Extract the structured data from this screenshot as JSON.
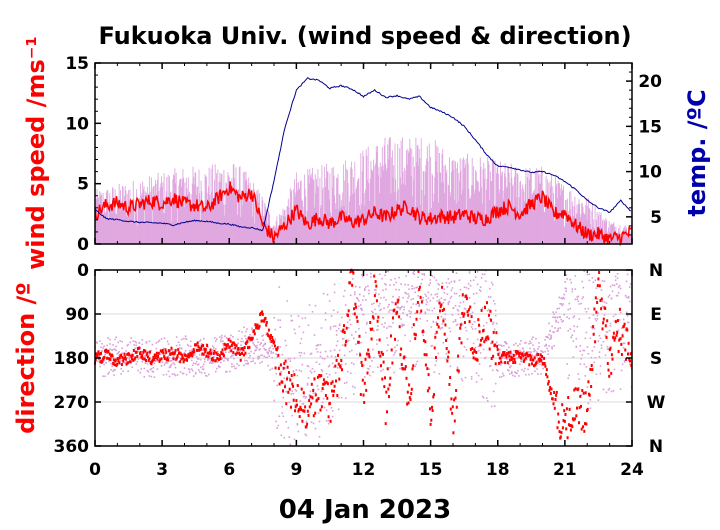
{
  "chart_data": [
    {
      "type": "line",
      "panel": "wind speed & temperature",
      "title": "Fukuoka Univ. (wind speed & direction)",
      "xlabel": "04 Jan 2023",
      "ylabel": "wind speed /ms⁻¹",
      "ylabel_right": "temp. /ºC",
      "xlim": [
        0,
        24
      ],
      "ylim": [
        0,
        15
      ],
      "ylim_right": [
        2,
        22
      ],
      "x_ticks": [
        "0",
        "3",
        "6",
        "9",
        "12",
        "15",
        "18",
        "21",
        "24"
      ],
      "y_ticks": [
        "0",
        "5",
        "10",
        "15"
      ],
      "y_right_ticks": [
        "5",
        "10",
        "15",
        "20"
      ],
      "grid": false,
      "series": [
        {
          "role": "gust (instantaneous wind speed)",
          "color": "#dda0dd",
          "x": [
            0,
            1,
            2,
            3,
            4,
            5,
            6,
            6.5,
            7,
            7.5,
            8,
            8.5,
            9,
            10,
            11,
            12,
            13,
            14,
            15,
            16,
            17,
            18,
            19,
            20,
            21,
            22,
            23,
            24
          ],
          "y": [
            4.5,
            5,
            5.5,
            6,
            6.5,
            6.5,
            7,
            6.5,
            5.5,
            4,
            2,
            3.5,
            6,
            6.5,
            7,
            8,
            9,
            9,
            9,
            7.5,
            7.5,
            7,
            6.5,
            6.5,
            5,
            4,
            2,
            1.5
          ]
        },
        {
          "role": "mean wind speed",
          "color": "#ff0000",
          "x": [
            0,
            0.5,
            1,
            1.5,
            2,
            2.5,
            3,
            3.5,
            4,
            4.5,
            5,
            5.5,
            6,
            6.5,
            7,
            7.5,
            8,
            8.5,
            9,
            9.5,
            10,
            10.5,
            11,
            11.5,
            12,
            12.5,
            13,
            13.5,
            14,
            14.5,
            15,
            15.5,
            16,
            16.5,
            17,
            17.5,
            18,
            18.5,
            19,
            19.5,
            20,
            20.5,
            21,
            21.5,
            22,
            22.5,
            23,
            23.5,
            24
          ],
          "y": [
            2.5,
            3.2,
            3.4,
            3,
            3.3,
            3.6,
            3.4,
            3.8,
            3.3,
            3.2,
            2.9,
            3.8,
            4.7,
            3.8,
            4.3,
            1.6,
            0.5,
            1.6,
            2.8,
            1.6,
            2.2,
            1.7,
            2.2,
            1.8,
            2,
            2.6,
            2.2,
            2.8,
            3.1,
            2.2,
            2.1,
            2.3,
            2.2,
            2.5,
            2.1,
            2.1,
            2.8,
            3.1,
            2.5,
            3.3,
            3.9,
            2.5,
            2.6,
            1.5,
            0.8,
            0.8,
            0.4,
            0.6,
            1
          ]
        },
        {
          "role": "temperature (right axis)",
          "color": "#00008b",
          "x": [
            0,
            0.5,
            1,
            1.5,
            2,
            3,
            3.5,
            4,
            4.5,
            5,
            5.5,
            6,
            6.5,
            7,
            7.5,
            8,
            8.5,
            9,
            9.5,
            10,
            10.5,
            11,
            11.5,
            12,
            12.5,
            13,
            13.5,
            14,
            14.5,
            15,
            15.5,
            16,
            16.5,
            17,
            17.5,
            18,
            18.5,
            19,
            19.5,
            20,
            20.5,
            21,
            21.5,
            22,
            22.5,
            23,
            23.5,
            24
          ],
          "y": [
            5.8,
            4.8,
            4.7,
            4.5,
            4.4,
            4.3,
            4.1,
            4.4,
            4.6,
            4.5,
            4.3,
            4.2,
            3.9,
            3.8,
            3.5,
            9,
            15,
            19,
            20.3,
            20.1,
            19.2,
            19.5,
            19.1,
            18.3,
            19,
            18.2,
            18.4,
            18,
            18.3,
            17.1,
            16.6,
            16,
            15,
            13.5,
            11.9,
            10.6,
            10.5,
            10.2,
            9.9,
            10,
            9.6,
            8.9,
            8,
            6.8,
            6,
            5.5,
            6.8,
            5.5
          ]
        }
      ]
    },
    {
      "type": "scatter",
      "panel": "wind direction",
      "ylabel": "direction /º",
      "xlim": [
        0,
        24
      ],
      "ylim": [
        360,
        0
      ],
      "x_ticks": [
        "0",
        "3",
        "6",
        "9",
        "12",
        "15",
        "18",
        "21",
        "24"
      ],
      "y_ticks": [
        "0",
        "90",
        "180",
        "270",
        "360"
      ],
      "y_right_ticks": [
        "N",
        "E",
        "S",
        "W",
        "N"
      ],
      "grid": true,
      "series": [
        {
          "role": "instantaneous direction",
          "color": "#d8a0d8",
          "x": [
            0,
            1,
            2,
            3,
            4,
            5,
            6,
            7,
            8,
            9,
            10,
            11,
            12,
            13,
            14,
            15,
            16,
            17,
            18,
            19,
            20,
            21,
            22,
            23,
            24
          ],
          "y": [
            180,
            175,
            180,
            180,
            175,
            180,
            170,
            150,
            170,
            230,
            200,
            140,
            80,
            60,
            60,
            60,
            70,
            100,
            180,
            180,
            175,
            60,
            150,
            100,
            90
          ]
        },
        {
          "role": "mean direction",
          "color": "#ff0000",
          "x": [
            0,
            0.5,
            1,
            1.5,
            2,
            2.5,
            3,
            3.5,
            4,
            4.5,
            5,
            5.5,
            6,
            6.5,
            7,
            7.5,
            8,
            8.5,
            9,
            9.5,
            10,
            10.5,
            11,
            11.5,
            12,
            12.5,
            13,
            13.5,
            14,
            14.5,
            15,
            15.5,
            16,
            16.5,
            17,
            17.5,
            18,
            18.5,
            19,
            19.5,
            20,
            20.5,
            21,
            21.5,
            22,
            22.5,
            23,
            23.5,
            24
          ],
          "y": [
            180,
            175,
            185,
            180,
            170,
            180,
            175,
            170,
            180,
            160,
            165,
            180,
            150,
            175,
            140,
            90,
            160,
            230,
            260,
            300,
            240,
            280,
            180,
            20,
            270,
            30,
            280,
            60,
            290,
            20,
            300,
            20,
            330,
            60,
            160,
            100,
            180,
            180,
            175,
            185,
            180,
            270,
            320,
            270,
            300,
            20,
            180,
            120,
            200
          ]
        }
      ]
    }
  ]
}
